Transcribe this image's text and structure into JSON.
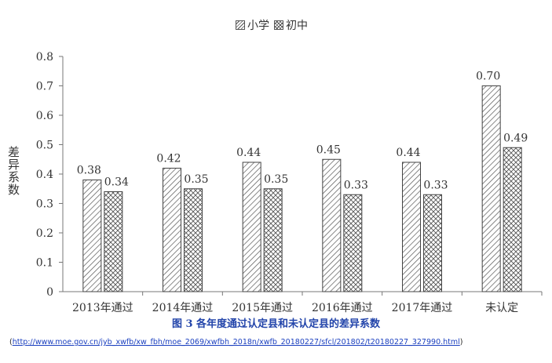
{
  "chart_data": {
    "type": "bar",
    "title": "",
    "ylabel": "差异系数",
    "xlabel": "",
    "ylim": [
      0,
      0.8
    ],
    "yticks": [
      "0",
      "0.1",
      "0.2",
      "0.3",
      "0.4",
      "0.5",
      "0.6",
      "0.7",
      "0.8"
    ],
    "ytick_values": [
      0,
      0.1,
      0.2,
      0.3,
      0.4,
      0.5,
      0.6,
      0.7,
      0.8
    ],
    "categories": [
      "2013年通过",
      "2014年通过",
      "2015年通过",
      "2016年通过",
      "2017年通过",
      "未认定"
    ],
    "series": [
      {
        "name": "小学",
        "values": [
          0.38,
          0.42,
          0.44,
          0.45,
          0.44,
          0.7
        ],
        "labels": [
          "0.38",
          "0.42",
          "0.44",
          "0.45",
          "0.44",
          "0.70"
        ],
        "pattern": "diagonal-hatch"
      },
      {
        "name": "初中",
        "values": [
          0.34,
          0.35,
          0.35,
          0.33,
          0.33,
          0.49
        ],
        "labels": [
          "0.34",
          "0.35",
          "0.35",
          "0.33",
          "0.33",
          "0.49"
        ],
        "pattern": "crosshatch"
      }
    ],
    "legend_position": "top-center",
    "grid": false
  },
  "caption": "图 3  各年度通过认定县和未认定县的差异系数",
  "source": {
    "open": "(",
    "url": "http://www.moe.gov.cn/jyb_xwfb/xw_fbh/moe_2069/xwfbh_2018n/xwfb_20180227/sfcl/201802/t20180227_327990.html",
    "close": ")"
  },
  "colors": {
    "bar_stroke": "#444444",
    "axis": "#555555",
    "caption": "#2244aa",
    "link": "#1a3fbf"
  }
}
